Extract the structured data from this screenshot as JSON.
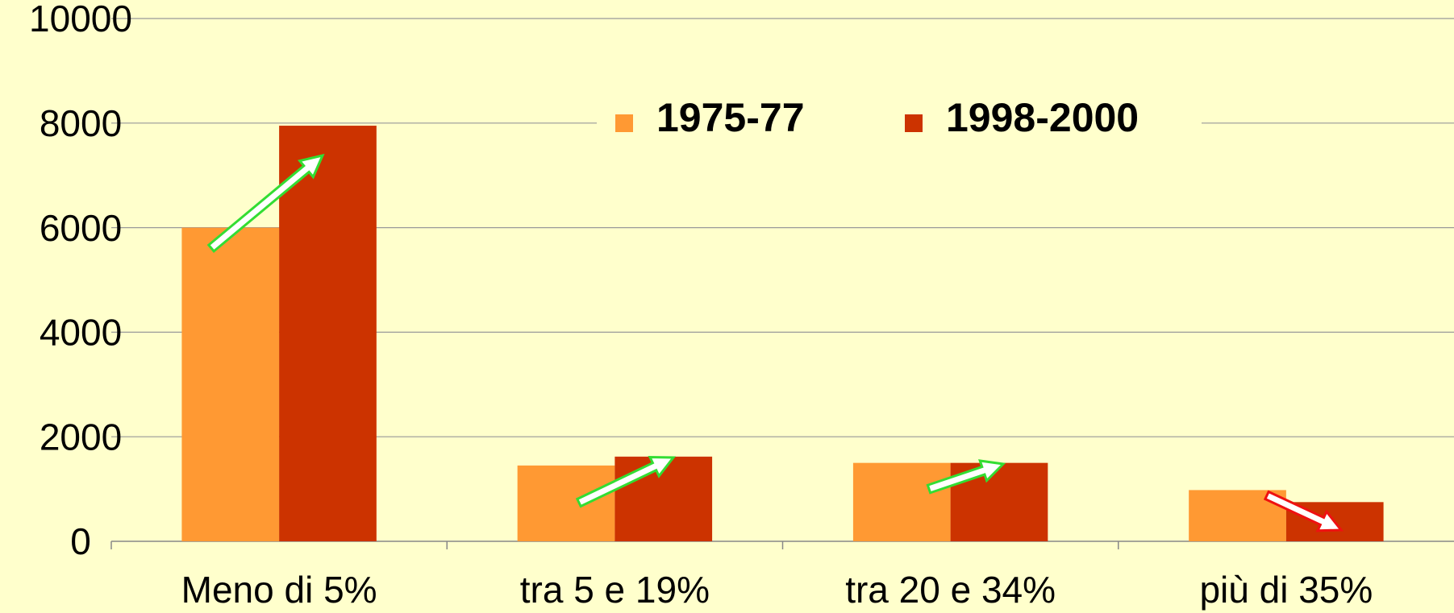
{
  "chart_data": {
    "type": "bar",
    "categories": [
      "Meno di 5%",
      "tra 5 e 19%",
      "tra 20 e 34%",
      "più di 35%"
    ],
    "series": [
      {
        "name": "1975-77",
        "color": "#FF9933",
        "values": [
          6000,
          1450,
          1500,
          980
        ]
      },
      {
        "name": "1998-2000",
        "color": "#CC3300",
        "values": [
          7950,
          1620,
          1500,
          750
        ]
      }
    ],
    "ylim": [
      0,
      10000
    ],
    "yticks": [
      0,
      2000,
      4000,
      6000,
      8000,
      10000
    ],
    "grid": true,
    "legend": "top"
  }
}
